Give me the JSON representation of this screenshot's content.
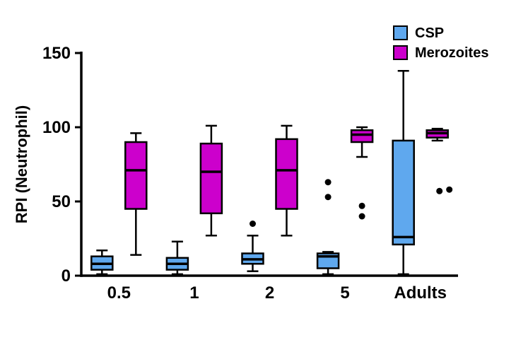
{
  "chart_data": {
    "type": "box",
    "title": "",
    "ylabel": "RPI (Neutrophil)",
    "xlabel": "",
    "ylim": [
      0,
      150
    ],
    "yticks": [
      0,
      50,
      100,
      150
    ],
    "grid": false,
    "legend_position": "top-right",
    "categories": [
      "0.5",
      "1",
      "2",
      "5",
      "Adults"
    ],
    "series": [
      {
        "name": "CSP",
        "color": "#5fa8ee",
        "boxes": [
          {
            "min": 1,
            "q1": 4,
            "median": 8,
            "q3": 13,
            "max": 17,
            "outliers": []
          },
          {
            "min": 1,
            "q1": 4,
            "median": 8,
            "q3": 12,
            "max": 23,
            "outliers": []
          },
          {
            "min": 3,
            "q1": 8,
            "median": 11,
            "q3": 15,
            "max": 27,
            "outliers": [
              35
            ]
          },
          {
            "min": 1,
            "q1": 5,
            "median": 13,
            "q3": 15,
            "max": 16,
            "outliers": [
              53,
              63
            ]
          },
          {
            "min": 1,
            "q1": 21,
            "median": 26,
            "q3": 91,
            "max": 138,
            "outliers": []
          }
        ]
      },
      {
        "name": "Merozoites",
        "color": "#cc00cc",
        "boxes": [
          {
            "min": 14,
            "q1": 45,
            "median": 71,
            "q3": 90,
            "max": 96,
            "outliers": []
          },
          {
            "min": 27,
            "q1": 42,
            "median": 70,
            "q3": 89,
            "max": 101,
            "outliers": []
          },
          {
            "min": 27,
            "q1": 45,
            "median": 71,
            "q3": 92,
            "max": 101,
            "outliers": []
          },
          {
            "min": 80,
            "q1": 90,
            "median": 95,
            "q3": 98,
            "max": 100,
            "outliers": [
              40,
              47
            ]
          },
          {
            "min": 91,
            "q1": 93,
            "median": 96,
            "q3": 98,
            "max": 99,
            "outliers": [
              57,
              58
            ]
          }
        ]
      }
    ]
  },
  "legend": {
    "items": [
      {
        "label": "CSP"
      },
      {
        "label": "Merozoites"
      }
    ]
  }
}
